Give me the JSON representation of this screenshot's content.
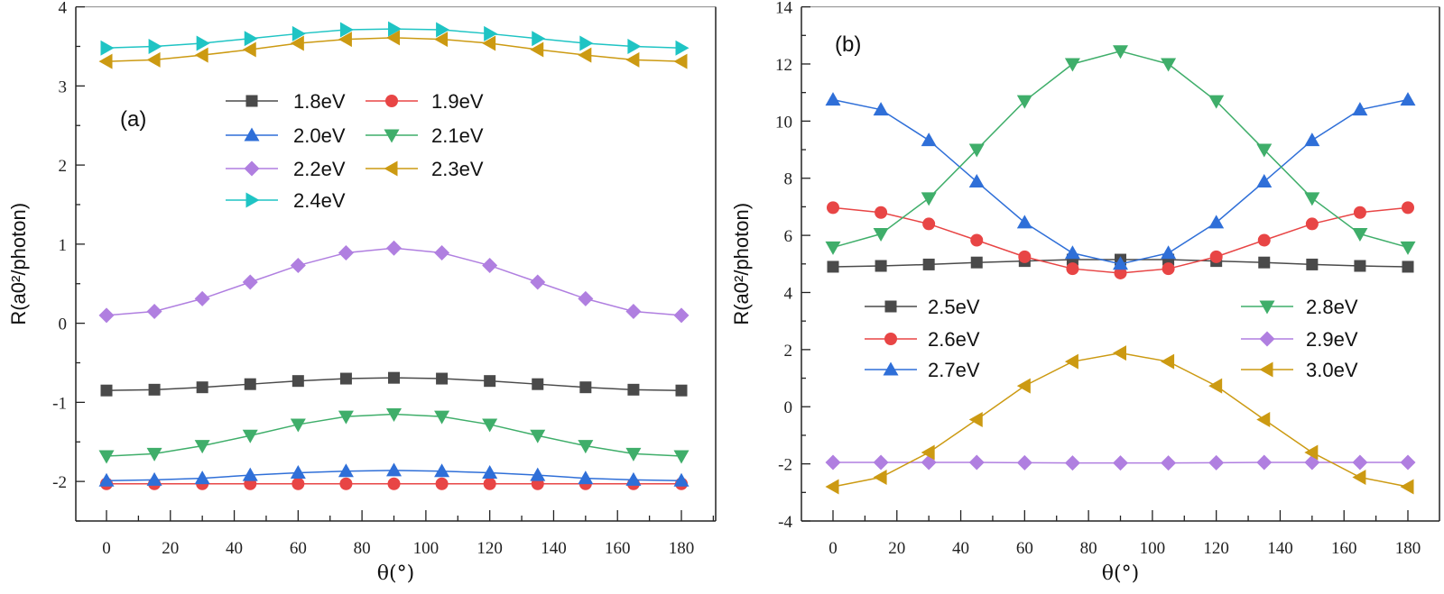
{
  "chart_data": [
    {
      "type": "line",
      "panel_label": "(a)",
      "xlabel": "θ(°)",
      "ylabel": "R(a0²/photon)",
      "xlim": [
        -10,
        190
      ],
      "ylim": [
        -2.5,
        4
      ],
      "xticks": [
        0,
        20,
        40,
        60,
        80,
        100,
        120,
        140,
        160,
        180
      ],
      "yticks": [
        -2,
        -1,
        0,
        1,
        2,
        3,
        4
      ],
      "grid": false,
      "legend_placement": "top-center",
      "x": [
        0,
        15,
        30,
        45,
        60,
        75,
        90,
        105,
        120,
        135,
        150,
        165,
        180
      ],
      "series": [
        {
          "name": "1.8eV",
          "color": "#4a4a4a",
          "marker": "square",
          "values": [
            -0.85,
            -0.84,
            -0.81,
            -0.77,
            -0.73,
            -0.7,
            -0.69,
            -0.7,
            -0.73,
            -0.77,
            -0.81,
            -0.84,
            -0.85
          ]
        },
        {
          "name": "1.9eV",
          "color": "#e84545",
          "marker": "circle",
          "values": [
            -2.03,
            -2.03,
            -2.03,
            -2.03,
            -2.03,
            -2.03,
            -2.03,
            -2.03,
            -2.03,
            -2.03,
            -2.03,
            -2.03,
            -2.03
          ]
        },
        {
          "name": "2.0eV",
          "color": "#2f6fd8",
          "marker": "triangle-up",
          "values": [
            -1.99,
            -1.98,
            -1.96,
            -1.92,
            -1.89,
            -1.87,
            -1.86,
            -1.87,
            -1.89,
            -1.92,
            -1.96,
            -1.98,
            -1.99
          ]
        },
        {
          "name": "2.1eV",
          "color": "#3fae6a",
          "marker": "triangle-down",
          "values": [
            -1.68,
            -1.65,
            -1.55,
            -1.42,
            -1.28,
            -1.18,
            -1.15,
            -1.18,
            -1.28,
            -1.42,
            -1.55,
            -1.65,
            -1.68
          ]
        },
        {
          "name": "2.2eV",
          "color": "#b07fe0",
          "marker": "diamond",
          "values": [
            0.1,
            0.15,
            0.31,
            0.52,
            0.73,
            0.89,
            0.95,
            0.89,
            0.73,
            0.52,
            0.31,
            0.15,
            0.1
          ]
        },
        {
          "name": "2.3eV",
          "color": "#cc9a12",
          "marker": "triangle-left",
          "values": [
            3.31,
            3.33,
            3.39,
            3.46,
            3.54,
            3.59,
            3.61,
            3.59,
            3.54,
            3.46,
            3.39,
            3.33,
            3.31
          ]
        },
        {
          "name": "2.4eV",
          "color": "#1fc4c4",
          "marker": "triangle-right",
          "values": [
            3.48,
            3.5,
            3.54,
            3.6,
            3.66,
            3.71,
            3.72,
            3.71,
            3.66,
            3.6,
            3.54,
            3.5,
            3.48
          ]
        }
      ]
    },
    {
      "type": "line",
      "panel_label": "(b)",
      "xlabel": "θ(°)",
      "ylabel": "R(a0²/photon)",
      "xlim": [
        -10,
        190
      ],
      "ylim": [
        -4,
        14
      ],
      "xticks": [
        0,
        20,
        40,
        60,
        80,
        100,
        120,
        140,
        160,
        180
      ],
      "yticks": [
        -4,
        -2,
        0,
        2,
        4,
        6,
        8,
        10,
        12,
        14
      ],
      "grid": false,
      "legend_placement": "center",
      "x": [
        0,
        15,
        30,
        45,
        60,
        75,
        90,
        105,
        120,
        135,
        150,
        165,
        180
      ],
      "series": [
        {
          "name": "2.5eV",
          "color": "#4a4a4a",
          "marker": "square",
          "values": [
            4.9,
            4.93,
            4.98,
            5.05,
            5.1,
            5.15,
            5.15,
            5.15,
            5.1,
            5.05,
            4.98,
            4.93,
            4.9
          ]
        },
        {
          "name": "2.6eV",
          "color": "#e84545",
          "marker": "circle",
          "values": [
            6.97,
            6.8,
            6.4,
            5.83,
            5.25,
            4.83,
            4.68,
            4.83,
            5.25,
            5.83,
            6.4,
            6.8,
            6.97
          ]
        },
        {
          "name": "2.7eV",
          "color": "#2f6fd8",
          "marker": "triangle-up",
          "values": [
            10.75,
            10.4,
            9.33,
            7.88,
            6.45,
            5.38,
            5.0,
            5.38,
            6.45,
            7.88,
            9.33,
            10.4,
            10.75
          ]
        },
        {
          "name": "2.8eV",
          "color": "#3fae6a",
          "marker": "triangle-down",
          "values": [
            5.58,
            6.05,
            7.3,
            9.0,
            10.7,
            12.0,
            12.45,
            12.0,
            10.7,
            9.0,
            7.3,
            6.05,
            5.58
          ]
        },
        {
          "name": "2.9eV",
          "color": "#b07fe0",
          "marker": "diamond",
          "values": [
            -1.95,
            -1.95,
            -1.95,
            -1.95,
            -1.96,
            -1.97,
            -1.97,
            -1.97,
            -1.96,
            -1.95,
            -1.95,
            -1.95,
            -1.95
          ]
        },
        {
          "name": "3.0eV",
          "color": "#cc9a12",
          "marker": "triangle-left",
          "values": [
            -2.8,
            -2.47,
            -1.6,
            -0.45,
            0.73,
            1.58,
            1.88,
            1.58,
            0.73,
            -0.45,
            -1.6,
            -2.47,
            -2.8
          ]
        }
      ]
    }
  ]
}
